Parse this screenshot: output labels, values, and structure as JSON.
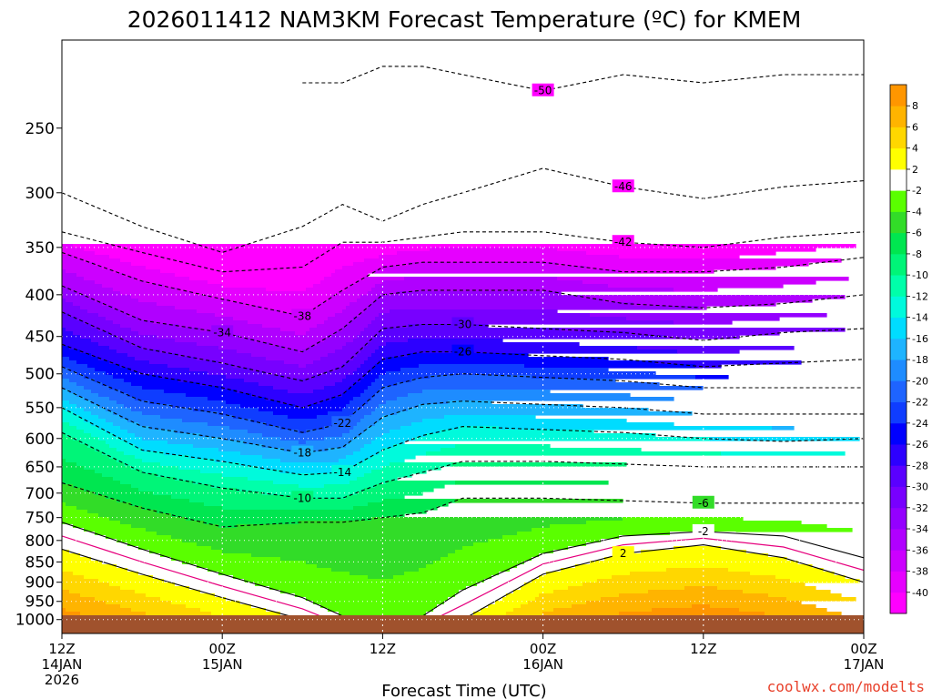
{
  "chart_data": {
    "type": "heatmap",
    "title": "2026011412 NAM3KM Forecast Temperature (ºC) for KMEM",
    "xlabel": "Forecast Time (UTC)",
    "ylabel": "",
    "y_scale": "pressure (log)",
    "ylim": [
      1040,
      195
    ],
    "y_ticks": [
      250,
      300,
      350,
      400,
      450,
      500,
      550,
      600,
      650,
      700,
      750,
      800,
      850,
      900,
      950,
      1000
    ],
    "x_ticks": [
      {
        "hour": 0,
        "l1": "12Z",
        "l2": "14JAN",
        "l3": "2026"
      },
      {
        "hour": 12,
        "l1": "00Z",
        "l2": "15JAN",
        "l3": ""
      },
      {
        "hour": 24,
        "l1": "12Z",
        "l2": "",
        "l3": ""
      },
      {
        "hour": 36,
        "l1": "00Z",
        "l2": "16JAN",
        "l3": ""
      },
      {
        "hour": 48,
        "l1": "12Z",
        "l2": "",
        "l3": ""
      },
      {
        "hour": 60,
        "l1": "00Z",
        "l2": "17JAN",
        "l3": ""
      }
    ],
    "xlim": [
      0,
      60
    ],
    "grid": true,
    "x": [
      0,
      6,
      12,
      18,
      21,
      24,
      27,
      30,
      36,
      42,
      48,
      54,
      60
    ],
    "contours": [
      {
        "level": -50,
        "p": [
          null,
          null,
          null,
          220,
          220,
          210,
          210,
          215,
          225,
          215,
          220,
          215,
          215
        ]
      },
      {
        "level": -46,
        "p": [
          300,
          330,
          355,
          330,
          310,
          325,
          310,
          300,
          280,
          295,
          305,
          295,
          290
        ]
      },
      {
        "level": -42,
        "p": [
          335,
          355,
          375,
          370,
          345,
          345,
          340,
          335,
          335,
          345,
          350,
          340,
          335
        ]
      },
      {
        "level": -38,
        "p": [
          355,
          385,
          405,
          425,
          395,
          370,
          365,
          365,
          365,
          375,
          375,
          370,
          360
        ]
      },
      {
        "level": -34,
        "p": [
          390,
          430,
          445,
          470,
          440,
          400,
          395,
          395,
          395,
          410,
          415,
          410,
          400
        ]
      },
      {
        "level": -30,
        "p": [
          420,
          465,
          485,
          510,
          490,
          440,
          435,
          435,
          440,
          445,
          455,
          445,
          440
        ]
      },
      {
        "level": -26,
        "p": [
          460,
          500,
          520,
          550,
          530,
          480,
          470,
          470,
          475,
          480,
          490,
          485,
          480
        ]
      },
      {
        "level": -22,
        "p": [
          490,
          540,
          560,
          590,
          575,
          520,
          505,
          500,
          505,
          510,
          520,
          520,
          520
        ]
      },
      {
        "level": -18,
        "p": [
          520,
          580,
          600,
          625,
          615,
          565,
          545,
          540,
          545,
          550,
          560,
          560,
          560
        ]
      },
      {
        "level": -14,
        "p": [
          550,
          620,
          640,
          665,
          660,
          620,
          595,
          580,
          585,
          590,
          600,
          605,
          600
        ]
      },
      {
        "level": -10,
        "p": [
          590,
          660,
          690,
          710,
          710,
          680,
          660,
          640,
          640,
          645,
          650,
          650,
          650
        ]
      },
      {
        "level": -6,
        "p": [
          680,
          730,
          770,
          760,
          760,
          750,
          740,
          710,
          710,
          715,
          720,
          720,
          720
        ]
      },
      {
        "level": -2,
        "p": [
          760,
          820,
          880,
          940,
          990,
          1040,
          990,
          920,
          830,
          790,
          780,
          790,
          840
        ]
      },
      {
        "level": 2,
        "p": [
          820,
          880,
          940,
          1000,
          1040,
          1040,
          1040,
          1000,
          880,
          830,
          810,
          840,
          900
        ]
      }
    ],
    "colorbar": {
      "levels": [
        -40,
        -38,
        -36,
        -34,
        -32,
        -30,
        -28,
        -26,
        -24,
        -22,
        -20,
        -18,
        -16,
        -14,
        -12,
        -10,
        -8,
        -6,
        -4,
        -2,
        2,
        4,
        6,
        8
      ],
      "colors": [
        "#ff00ff",
        "#e600ff",
        "#cc00ff",
        "#b000ff",
        "#9400ff",
        "#7800ff",
        "#5a00ff",
        "#2d00ff",
        "#0000ff",
        "#0f3dff",
        "#1e64ff",
        "#1e8cff",
        "#1eb4ff",
        "#00dcff",
        "#00fadc",
        "#00ffaa",
        "#00f578",
        "#00e650",
        "#32dc28",
        "#5aff00",
        "#ffffff",
        "#ffff00",
        "#ffd700",
        "#ffb400",
        "#ff9600"
      ]
    },
    "ground_color": "#a0522d",
    "credit": "coolwx.com/modelts"
  }
}
